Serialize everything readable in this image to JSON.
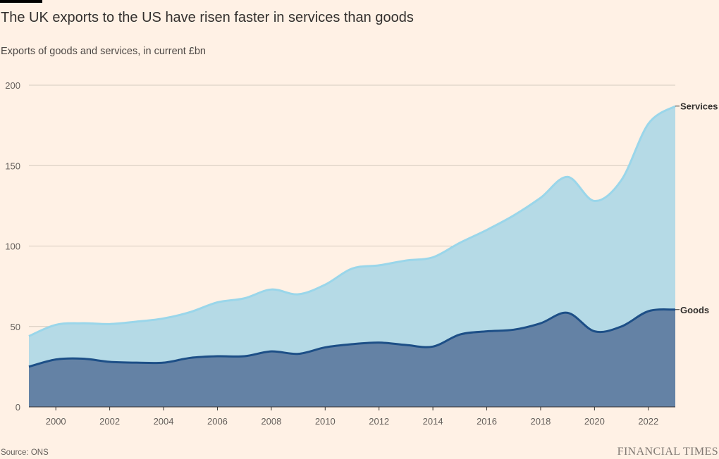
{
  "title": "The UK exports to the US have risen faster in services than goods",
  "subtitle": "Exports of goods and services, in current £bn",
  "source": "Source: ONS",
  "brand": "FINANCIAL TIMES",
  "colors": {
    "background": "#fff1e5",
    "services_fill": "#b5dae6",
    "services_line": "#9ad6ea",
    "goods_fill": "#6482a5",
    "goods_line": "#1d4f87",
    "grid": "#d6cbbf",
    "axis": "#66605c"
  },
  "chart_data": {
    "type": "area",
    "stacked": false,
    "x": [
      1999,
      2000,
      2001,
      2002,
      2003,
      2004,
      2005,
      2006,
      2007,
      2008,
      2009,
      2010,
      2011,
      2012,
      2013,
      2014,
      2015,
      2016,
      2017,
      2018,
      2019,
      2020,
      2021,
      2022,
      2023
    ],
    "x_ticks": [
      2000,
      2002,
      2004,
      2006,
      2008,
      2010,
      2012,
      2014,
      2016,
      2018,
      2020,
      2022
    ],
    "y_ticks": [
      0,
      50,
      100,
      150,
      200
    ],
    "ylim": [
      0,
      200
    ],
    "grid": true,
    "series": [
      {
        "name": "Services",
        "values": [
          44,
          51,
          52,
          51.5,
          53,
          55,
          59,
          65,
          67.5,
          73,
          70,
          76,
          86,
          88,
          91,
          93,
          102,
          110,
          119,
          130,
          143,
          128,
          141,
          176,
          187
        ]
      },
      {
        "name": "Goods",
        "values": [
          25,
          29.5,
          30,
          28,
          27.5,
          27.5,
          30.5,
          31.5,
          31.5,
          34.5,
          33,
          37,
          39,
          40,
          38.5,
          37.5,
          45,
          47,
          48,
          52,
          58.5,
          47,
          50,
          59.5,
          60.5
        ]
      }
    ]
  }
}
